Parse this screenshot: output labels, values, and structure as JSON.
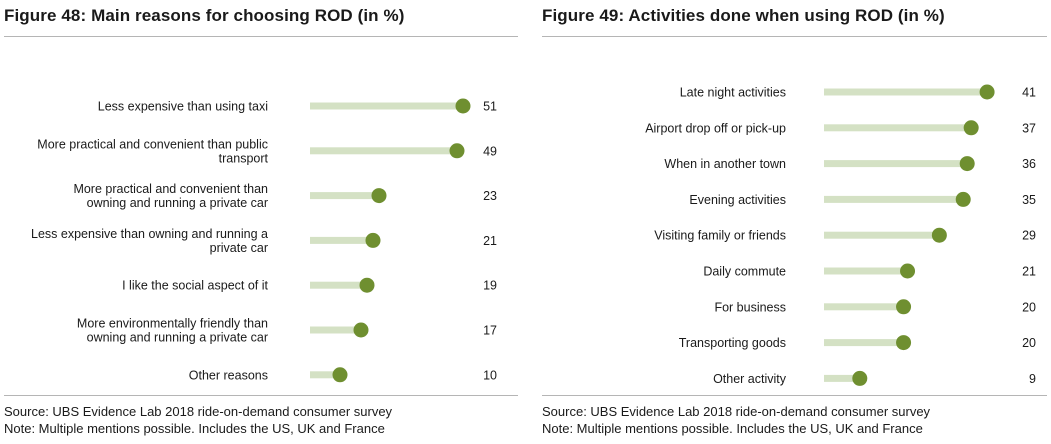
{
  "left": {
    "title": "Figure 48: Main reasons for choosing ROD (in %)",
    "source": "Source:  UBS Evidence Lab 2018 ride-on-demand consumer survey",
    "note": "Note: Multiple mentions possible. Includes the US, UK and France"
  },
  "right": {
    "title": "Figure 49: Activities done when using ROD (in %)",
    "source": "Source:  UBS Evidence Lab 2018 ride-on-demand consumer survey",
    "note": "Note: Multiple mentions possible. Includes the US, UK and France"
  },
  "colors": {
    "bar": "#d4e1c4",
    "dot": "#6f8f30"
  },
  "chart_data": [
    {
      "type": "bar",
      "style": "lollipop",
      "orientation": "horizontal",
      "title": "Figure 48: Main reasons for choosing ROD (in %)",
      "categories": [
        [
          "Less expensive than using taxi"
        ],
        [
          "More practical and convenient than public",
          "transport"
        ],
        [
          "More practical and convenient than",
          "owning and running a private car"
        ],
        [
          "Less expensive than owning and running a",
          "private car"
        ],
        [
          "I like the social aspect of it"
        ],
        [
          "More environmentally friendly than",
          "owning and running a private car"
        ],
        [
          "Other reasons"
        ]
      ],
      "values": [
        51,
        49,
        23,
        21,
        19,
        17,
        10
      ],
      "xlim": [
        0,
        55
      ],
      "grid": false,
      "data_labels": true
    },
    {
      "type": "bar",
      "style": "lollipop",
      "orientation": "horizontal",
      "title": "Figure 49: Activities done when using ROD (in %)",
      "categories": [
        [
          "Late night activities"
        ],
        [
          "Airport drop off or pick-up"
        ],
        [
          "When in another town"
        ],
        [
          "Evening activities"
        ],
        [
          "Visiting family or friends"
        ],
        [
          "Daily commute"
        ],
        [
          "For business"
        ],
        [
          "Transporting goods"
        ],
        [
          "Other activity"
        ]
      ],
      "values": [
        41,
        37,
        36,
        35,
        29,
        21,
        20,
        20,
        9
      ],
      "xlim": [
        0,
        45
      ],
      "grid": false,
      "data_labels": true
    }
  ]
}
